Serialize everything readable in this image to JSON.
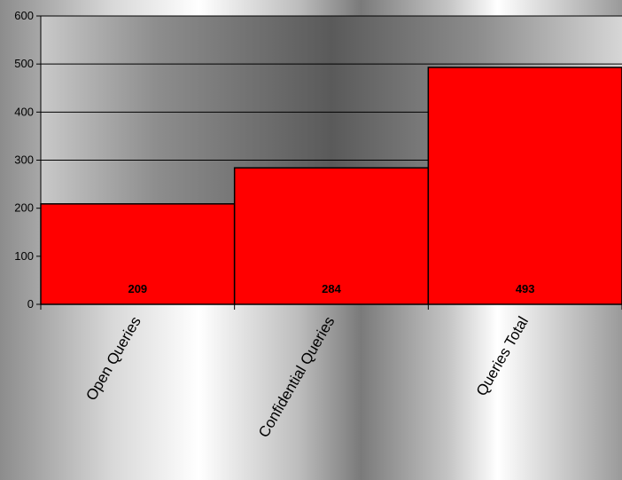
{
  "chart_data": {
    "type": "bar",
    "categories": [
      "Open Queries",
      "Confidential Queries",
      "Queries Total"
    ],
    "values": [
      209,
      284,
      493
    ],
    "ylim": [
      0,
      600
    ],
    "yticks": [
      0,
      100,
      200,
      300,
      400,
      500,
      600
    ],
    "data_labels": [
      "209",
      "284",
      "493"
    ],
    "title": "",
    "xlabel": "",
    "ylabel": "",
    "grid": true,
    "legend": "none",
    "bar_color": "#ff0000"
  }
}
